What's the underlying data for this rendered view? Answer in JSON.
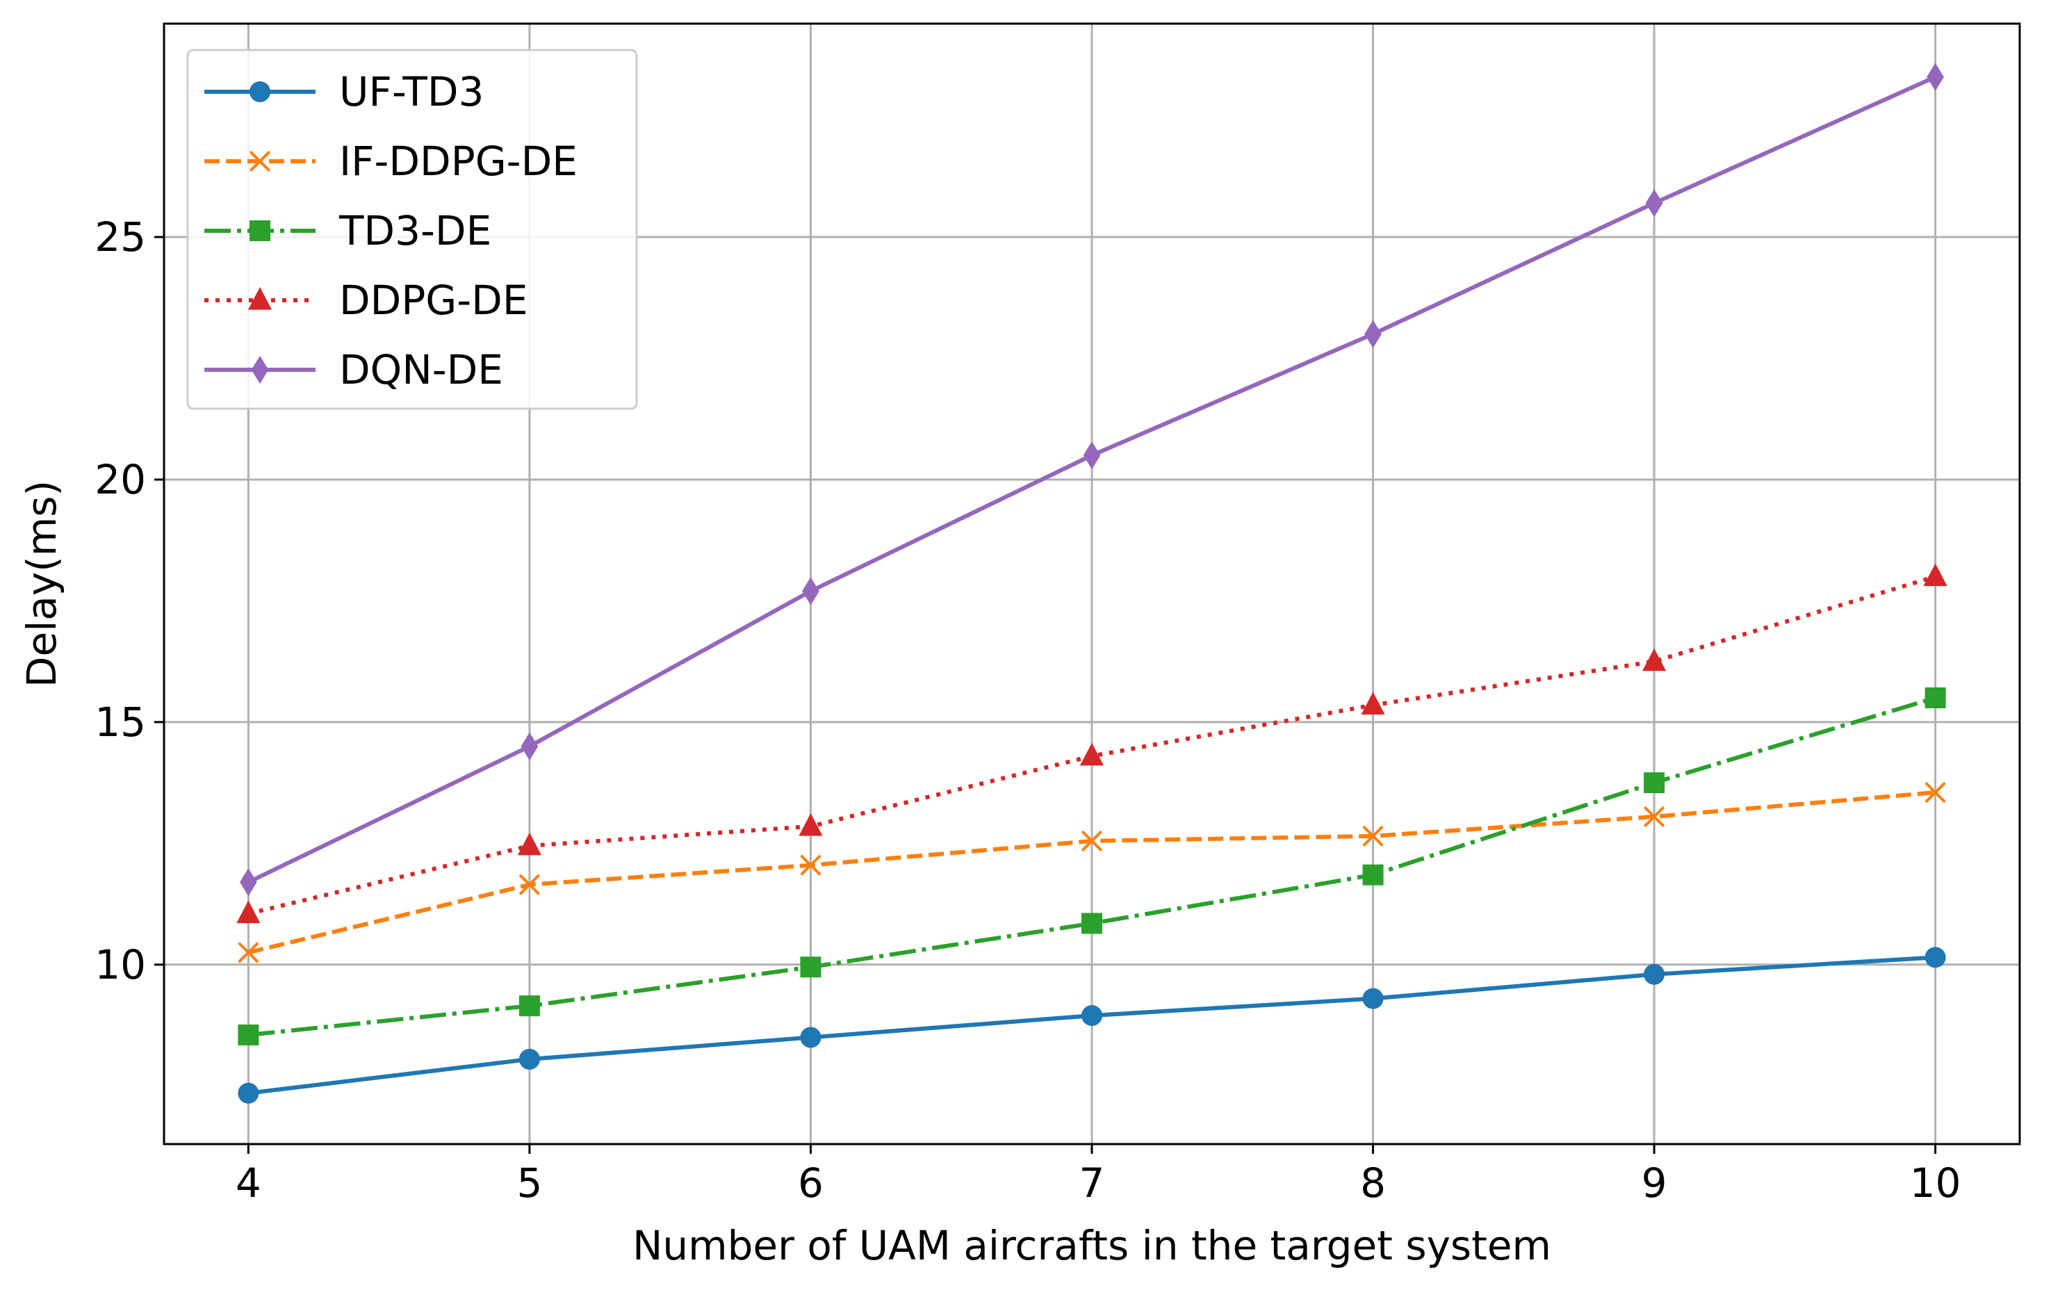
{
  "chart_data": {
    "type": "line",
    "title": "",
    "xlabel": "Number of UAM aircrafts in the target system",
    "ylabel": "Delay(ms)",
    "x": [
      4,
      5,
      6,
      7,
      8,
      9,
      10
    ],
    "xlim": [
      3.7,
      10.3
    ],
    "ylim": [
      6.3,
      29.4
    ],
    "xticks": [
      4,
      5,
      6,
      7,
      8,
      9,
      10
    ],
    "yticks": [
      10,
      15,
      20,
      25
    ],
    "grid": true,
    "legend_position": "upper-left",
    "series": [
      {
        "name": "UF-TD3",
        "color": "#1f77b4",
        "linestyle": "solid",
        "marker": "circle",
        "values": [
          7.35,
          8.05,
          8.5,
          8.95,
          9.3,
          9.8,
          10.15
        ]
      },
      {
        "name": "IF-DDPG-DE",
        "color": "#ff7f0e",
        "linestyle": "dashed",
        "marker": "x",
        "values": [
          10.25,
          11.65,
          12.05,
          12.55,
          12.65,
          13.05,
          13.55
        ]
      },
      {
        "name": "TD3-DE",
        "color": "#2ca02c",
        "linestyle": "dashdot",
        "marker": "square",
        "values": [
          8.55,
          9.15,
          9.95,
          10.85,
          11.85,
          13.75,
          15.5
        ]
      },
      {
        "name": "DDPG-DE",
        "color": "#d62728",
        "linestyle": "dotted",
        "marker": "triangle",
        "values": [
          11.05,
          12.45,
          12.85,
          14.3,
          15.35,
          16.25,
          18.0
        ]
      },
      {
        "name": "DQN-DE",
        "color": "#9467bd",
        "linestyle": "solid",
        "marker": "diamond",
        "values": [
          11.7,
          14.5,
          17.7,
          20.5,
          23.0,
          25.7,
          28.3
        ]
      }
    ]
  }
}
